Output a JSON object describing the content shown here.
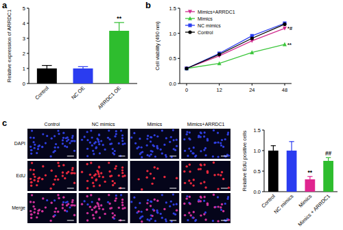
{
  "chart_data": [
    {
      "type": "bar",
      "title": "a",
      "y_label": "Relative expression of ARRDC1",
      "categories": [
        "Control",
        "NC OE",
        "ARRDC1 OE"
      ],
      "values": [
        1.0,
        1.0,
        3.5
      ],
      "errors": [
        0.2,
        0.12,
        0.55
      ],
      "colors": [
        "#000000",
        "#2a3cf0",
        "#2ebd2e"
      ],
      "ylim": [
        0,
        5
      ],
      "yticks": [
        0,
        1,
        2,
        3,
        4,
        5
      ],
      "annotations": [
        {
          "text": "**",
          "category": "ARRDC1 OE"
        }
      ]
    },
    {
      "type": "line",
      "title": "b",
      "y_label": "Cell viability (490 nm)",
      "categories": [
        "0",
        "12",
        "24",
        "48"
      ],
      "series": [
        {
          "name": "Mimics+ARRDC1",
          "color": "#d12c8f",
          "marker": "triangle-down",
          "values": [
            0.3,
            0.55,
            0.85,
            1.1
          ]
        },
        {
          "name": "Mimics",
          "color": "#3cc63c",
          "marker": "triangle",
          "values": [
            0.3,
            0.4,
            0.62,
            0.78
          ]
        },
        {
          "name": "NC mimics",
          "color": "#2a3cf0",
          "marker": "square",
          "values": [
            0.3,
            0.6,
            0.95,
            1.2
          ]
        },
        {
          "name": "Control",
          "color": "#000000",
          "marker": "circle",
          "values": [
            0.3,
            0.58,
            0.9,
            1.18
          ]
        }
      ],
      "ylim": [
        0,
        1.5
      ],
      "yticks": [
        {
          "value": 0,
          "label": "0.0"
        },
        0.5,
        {
          "value": 1,
          "label": "1.0"
        },
        1.5
      ],
      "legend": "upper left",
      "annotations": [
        {
          "text": "*#",
          "series": "Mimics+ARRDC1"
        },
        {
          "text": "**",
          "series": "Mimics"
        }
      ]
    },
    {
      "type": "image_grid",
      "title": "c",
      "columns": [
        "Control",
        "NC mimics",
        "Mimics",
        "Mimics+ARRDC1"
      ],
      "rows": [
        "DAPI",
        "EdU",
        "Merge"
      ]
    },
    {
      "type": "bar",
      "y_label": "Relative EdU positive cells",
      "categories": [
        "Control",
        "NC mimics",
        "Mimics",
        "Mimics + ARRDC1"
      ],
      "values": [
        1.0,
        1.0,
        0.3,
        0.75
      ],
      "errors": [
        0.12,
        0.22,
        0.07,
        0.08
      ],
      "colors": [
        "#000000",
        "#2a3cf0",
        "#e0258f",
        "#2ebd2e"
      ],
      "ylim": [
        0,
        1.5
      ],
      "yticks": [
        {
          "value": 0,
          "label": "0.0"
        },
        0.5,
        {
          "value": 1,
          "label": "1.0"
        },
        1.5
      ],
      "annotations": [
        {
          "text": "**",
          "category": "Mimics"
        },
        {
          "text": "##",
          "category": "Mimics + ARRDC1"
        }
      ]
    }
  ]
}
